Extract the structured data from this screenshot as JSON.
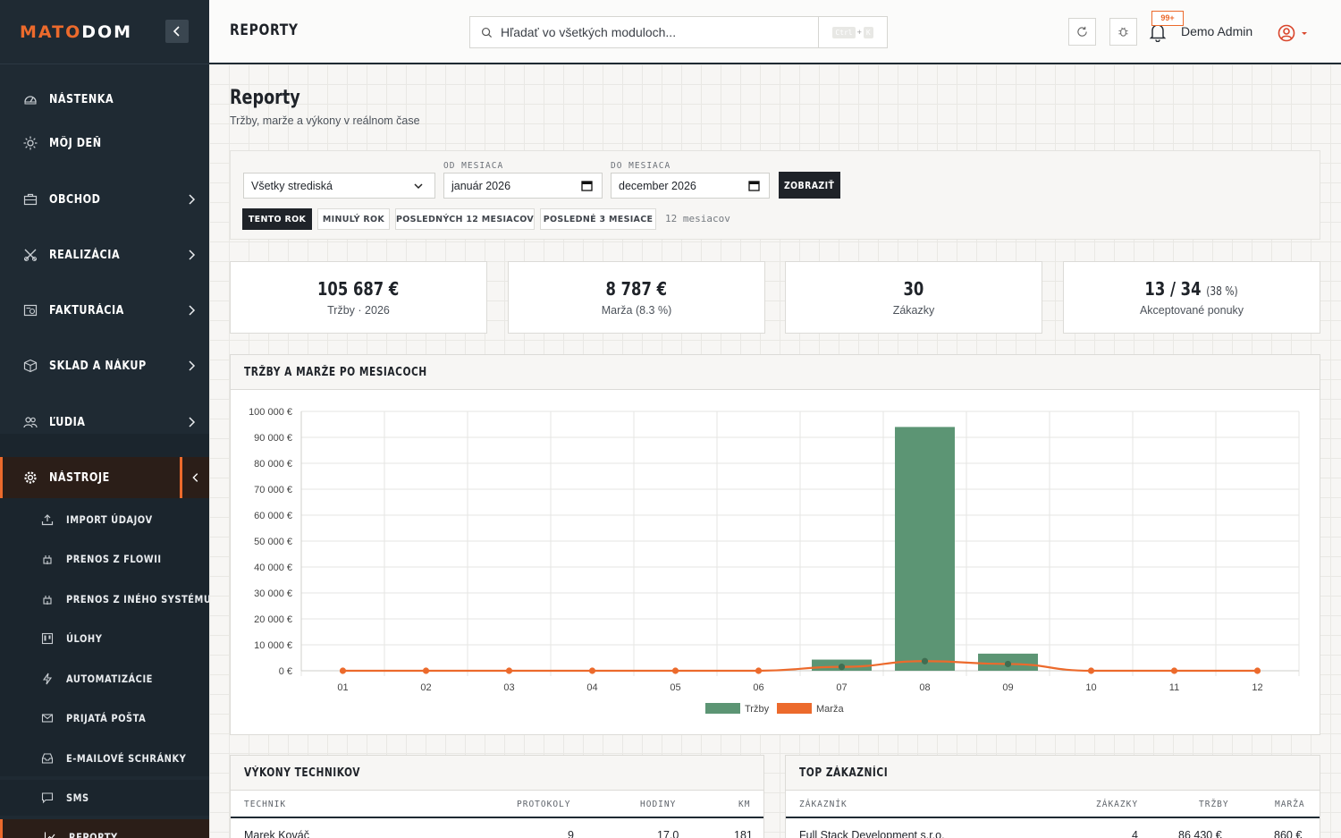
{
  "brand": {
    "part1": "MATO",
    "part2": "DOM"
  },
  "topbar": {
    "title": "REPORTY",
    "search_placeholder": "Hľadať vo všetkých moduloch...",
    "shortcut_key1": "Ctrl",
    "shortcut_plus": "+",
    "shortcut_key2": "K",
    "notif_count": "99+",
    "user_name": "Demo Admin"
  },
  "sidebar": {
    "items": [
      {
        "label": "Nástenka"
      },
      {
        "label": "Môj deň"
      },
      {
        "label": "Obchod"
      },
      {
        "label": "Realizácia"
      },
      {
        "label": "Fakturácia"
      },
      {
        "label": "Sklad a nákup"
      },
      {
        "label": "Ľudia"
      },
      {
        "label": "Nástroje"
      }
    ],
    "subitems": [
      {
        "label": "Import údajov"
      },
      {
        "label": "Prenos z Flowii"
      },
      {
        "label": "Prenos z iného systému"
      },
      {
        "label": "Úlohy"
      },
      {
        "label": "Automatizácie"
      },
      {
        "label": "Prijatá pošta"
      },
      {
        "label": "E-mailové schránky"
      },
      {
        "label": "SMS"
      },
      {
        "label": "Reporty"
      }
    ]
  },
  "page": {
    "title": "Reporty",
    "subtitle": "Tržby, marže a výkony v reálnom čase"
  },
  "filters": {
    "center": "Všetky strediská",
    "from_label": "Od mesiaca",
    "from_value": "január 2026",
    "to_label": "Do mesiaca",
    "to_value": "december 2026",
    "show_label": "ZOBRAZIŤ",
    "presets": [
      "TENTO ROK",
      "MINULÝ ROK",
      "POSLEDNÝCH 12 MESIACOV",
      "POSLEDNÉ 3 MESIACE"
    ],
    "active_preset": "TENTO ROK",
    "range_note": "12 mesiacov"
  },
  "kpis": [
    {
      "value": "105 687 €",
      "extra": "",
      "label": "Tržby · 2026"
    },
    {
      "value": "8 787 €",
      "extra": "",
      "label": "Marža (8.3 %)"
    },
    {
      "value": "30",
      "extra": "",
      "label": "Zákazky"
    },
    {
      "value": "13 / 34",
      "extra": "(38 %)",
      "label": "Akceptované ponuky"
    }
  ],
  "chart_panel_title": "Tržby a marže po mesiacoch",
  "chart_data": {
    "type": "bar",
    "title": "",
    "xlabel": "",
    "ylabel": "",
    "categories": [
      "01",
      "02",
      "03",
      "04",
      "05",
      "06",
      "07",
      "08",
      "09",
      "10",
      "11",
      "12"
    ],
    "ylim": [
      0,
      100000
    ],
    "yticks": [
      "0 €",
      "10 000 €",
      "20 000 €",
      "30 000 €",
      "40 000 €",
      "50 000 €",
      "60 000 €",
      "70 000 €",
      "80 000 €",
      "90 000 €",
      "100 000 €"
    ],
    "grid": true,
    "legend": "bottom",
    "series": [
      {
        "name": "Tržby",
        "type": "bar",
        "color": "#5c9574",
        "values": [
          0,
          0,
          0,
          0,
          0,
          0,
          4300,
          94000,
          6600,
          0,
          0,
          0
        ]
      },
      {
        "name": "Marža",
        "type": "line",
        "color": "#ec6a2c",
        "values": [
          0,
          0,
          0,
          0,
          0,
          0,
          1500,
          3700,
          2600,
          0,
          0,
          0
        ]
      }
    ]
  },
  "technicians": {
    "title": "Výkony technikov",
    "columns": [
      "Technik",
      "Protokoly",
      "Hodiny",
      "Km"
    ],
    "rows": [
      [
        "Marek Kováč",
        "9",
        "17.0",
        "181"
      ]
    ]
  },
  "customers": {
    "title": "Top zákazníci",
    "columns": [
      "Zákazník",
      "Zákazky",
      "Tržby",
      "Marža"
    ],
    "rows": [
      [
        "Full Stack Development s.r.o.",
        "4",
        "86 430 €",
        "860 €"
      ]
    ]
  }
}
